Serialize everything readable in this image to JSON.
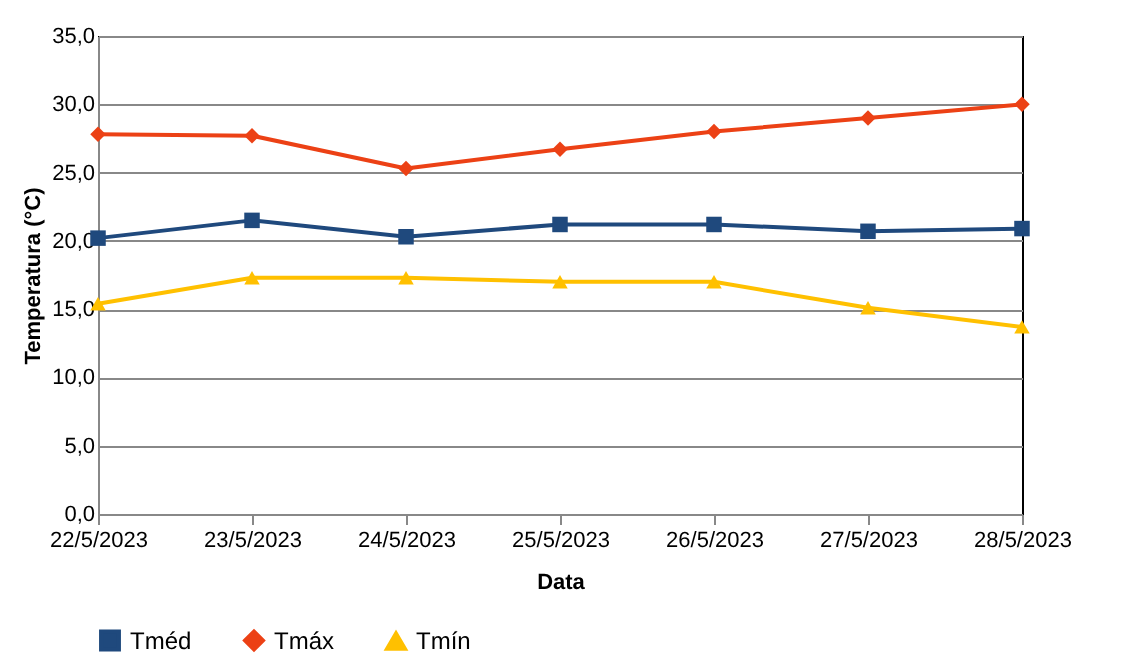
{
  "chart_data": {
    "type": "line",
    "xlabel": "Data",
    "ylabel": "Temperatura (°C)",
    "categories": [
      "22/5/2023",
      "23/5/2023",
      "24/5/2023",
      "25/5/2023",
      "26/5/2023",
      "27/5/2023",
      "28/5/2023"
    ],
    "series": [
      {
        "name": "Tméd",
        "color": "#1f497d",
        "marker": "square",
        "values": [
          20.2,
          21.5,
          20.3,
          21.2,
          21.2,
          20.7,
          20.9
        ]
      },
      {
        "name": "Tmáx",
        "color": "#ec4115",
        "marker": "diamond",
        "values": [
          27.8,
          27.7,
          25.3,
          26.7,
          28.0,
          29.0,
          30.0
        ]
      },
      {
        "name": "Tmín",
        "color": "#ffc000",
        "marker": "triangle",
        "values": [
          15.4,
          17.3,
          17.3,
          17.0,
          17.0,
          15.1,
          13.7
        ]
      }
    ],
    "ylim": [
      0,
      35
    ],
    "yticks": [
      {
        "value": 0,
        "label": "0,0"
      },
      {
        "value": 5,
        "label": "5,0"
      },
      {
        "value": 10,
        "label": "10,0"
      },
      {
        "value": 15,
        "label": "15,0"
      },
      {
        "value": 20,
        "label": "20,0"
      },
      {
        "value": 25,
        "label": "25,0"
      },
      {
        "value": 30,
        "label": "30,0"
      },
      {
        "value": 35,
        "label": "35,0"
      }
    ],
    "grid": "y",
    "legend": "bottom"
  }
}
